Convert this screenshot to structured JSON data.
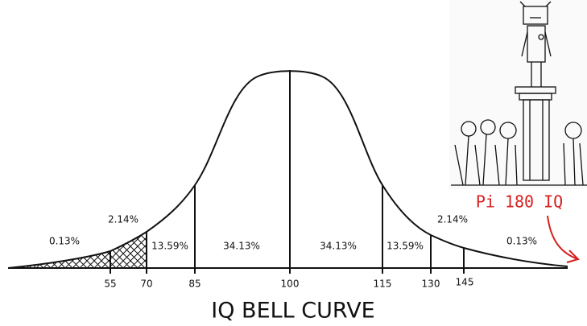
{
  "title": "IQ BELL CURVE",
  "axis_labels": [
    55,
    70,
    85,
    100,
    115,
    130,
    145
  ],
  "regions": [
    "0.13%",
    "2.14%",
    "13.59%",
    "34.13%",
    "34.13%",
    "13.59%",
    "2.14%",
    "0.13%"
  ],
  "annotation": "Pi 180 IQ"
}
